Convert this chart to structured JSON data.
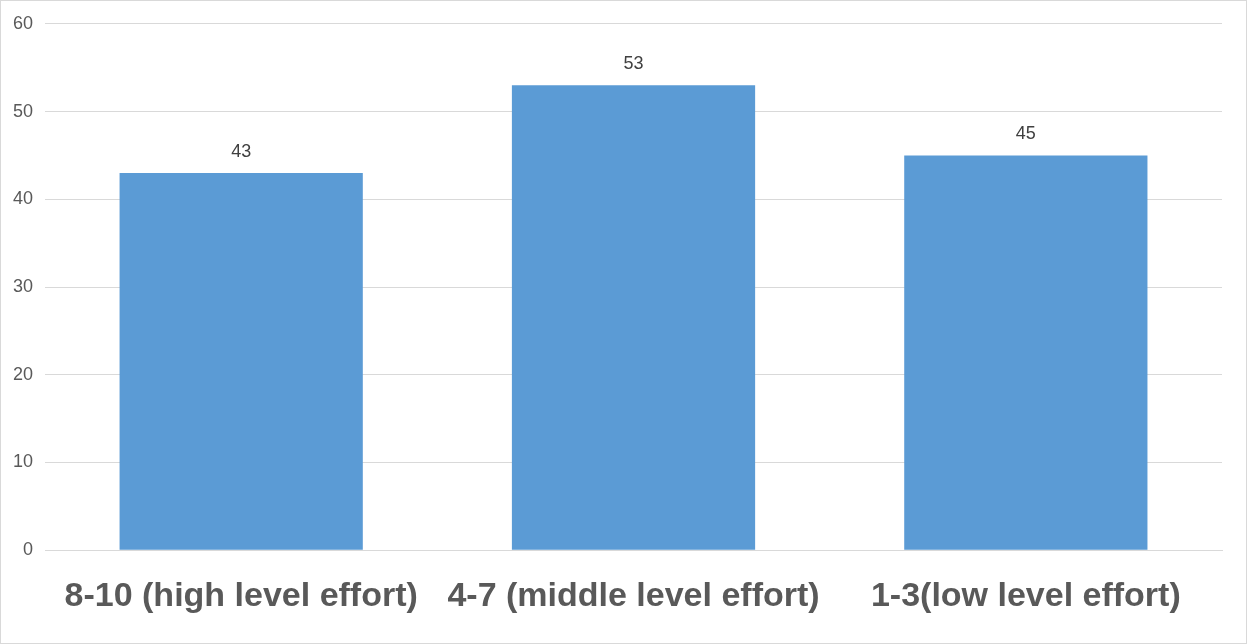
{
  "chart_data": {
    "type": "bar",
    "categories": [
      "8-10 (high level effort)",
      "4-7 (middle level effort)",
      "1-3(low level effort)"
    ],
    "values": [
      43,
      53,
      45
    ],
    "color": "#5b9bd5",
    "ylim": [
      0,
      60
    ],
    "yticks": [
      0,
      10,
      20,
      30,
      40,
      50,
      60
    ],
    "grid": "y",
    "data_labels": true
  }
}
